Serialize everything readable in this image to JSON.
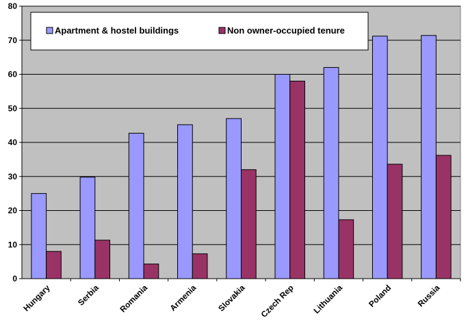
{
  "chart_data": {
    "type": "bar",
    "categories": [
      "Hungary",
      "Serbia",
      "Romania",
      "Armenia",
      "Slovakia",
      "Czech Rep",
      "Lithuania",
      "Poland",
      "Russia"
    ],
    "series": [
      {
        "name": "Apartment & hostel buildings",
        "color": "#9999ff",
        "values": [
          25,
          29.8,
          42.7,
          45.2,
          47,
          60,
          62,
          71.2,
          71.4
        ]
      },
      {
        "name": "Non owner-occupied tenure",
        "color": "#993366",
        "values": [
          8,
          11.3,
          4.3,
          7.3,
          32,
          58,
          17.3,
          33.6,
          36.2
        ]
      }
    ],
    "ylim": [
      0,
      80
    ],
    "yticks": [
      0,
      10,
      20,
      30,
      40,
      50,
      60,
      70,
      80
    ],
    "grid": true,
    "legend_position": "top-left-inside",
    "plot_background": "#c0c0c0"
  }
}
